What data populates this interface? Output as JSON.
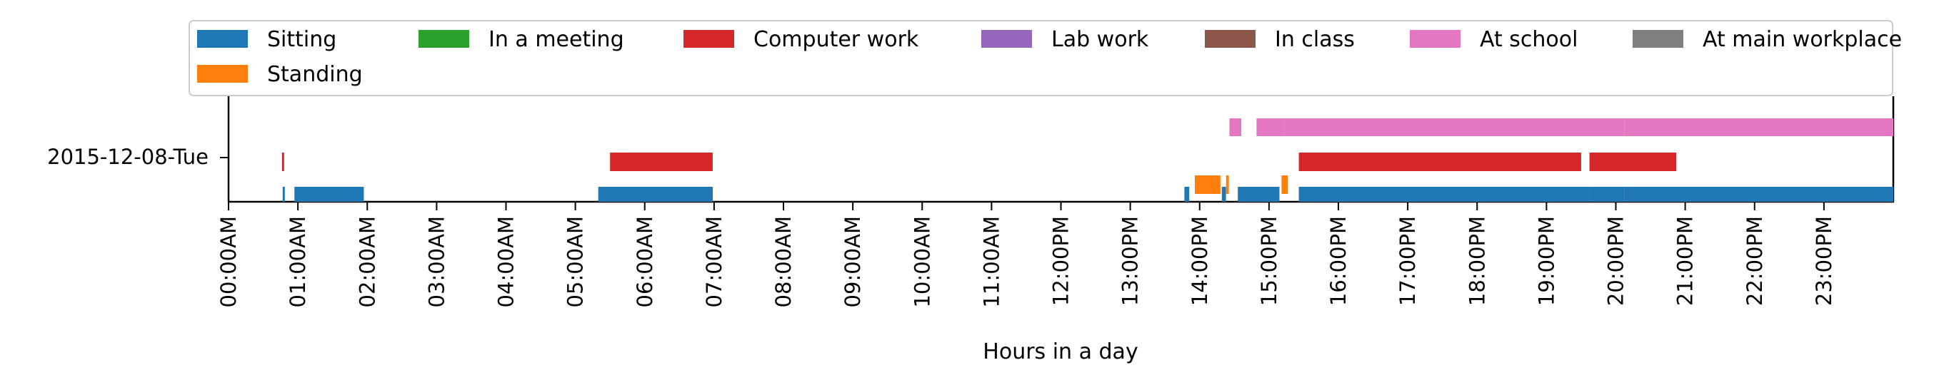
{
  "chart_data": {
    "type": "timeline",
    "xlabel": "Hours in a day",
    "xlim": [
      0,
      24
    ],
    "xtick_labels": [
      "00:00AM",
      "01:00AM",
      "02:00AM",
      "03:00AM",
      "04:00AM",
      "05:00AM",
      "06:00AM",
      "07:00AM",
      "08:00AM",
      "09:00AM",
      "10:00AM",
      "11:00AM",
      "12:00PM",
      "13:00PM",
      "14:00PM",
      "15:00PM",
      "16:00PM",
      "17:00PM",
      "18:00PM",
      "19:00PM",
      "20:00PM",
      "21:00PM",
      "22:00PM",
      "23:00PM"
    ],
    "y_category": "2015-12-08-Tue",
    "grid": false,
    "legend_position": "top",
    "legend": [
      {
        "label": "Sitting",
        "color": "#1f77b4"
      },
      {
        "label": "In a meeting",
        "color": "#2ca02c"
      },
      {
        "label": "Computer work",
        "color": "#d62728"
      },
      {
        "label": "Lab work",
        "color": "#9467bd"
      },
      {
        "label": "In class",
        "color": "#8c564b"
      },
      {
        "label": "At school",
        "color": "#e377c2"
      },
      {
        "label": "At main workplace",
        "color": "#7f7f7f"
      },
      {
        "label": "Standing",
        "color": "#ff7f0e"
      }
    ],
    "series": [
      {
        "name": "Sitting",
        "color": "#1f77b4",
        "track": "bottom",
        "intervals": [
          [
            0.78,
            0.8
          ],
          [
            0.95,
            1.95
          ],
          [
            5.33,
            6.98
          ],
          [
            13.78,
            13.85
          ],
          [
            14.32,
            14.38
          ],
          [
            14.55,
            15.15
          ],
          [
            15.43,
            19.62
          ],
          [
            19.62,
            20.12
          ],
          [
            20.12,
            24.0
          ]
        ]
      },
      {
        "name": "Standing",
        "color": "#ff7f0e",
        "track": "middle-low",
        "intervals": [
          [
            13.93,
            14.3
          ],
          [
            14.38,
            14.42
          ],
          [
            15.18,
            15.27
          ]
        ]
      },
      {
        "name": "Computer work",
        "color": "#d62728",
        "track": "middle",
        "intervals": [
          [
            0.77,
            0.8
          ],
          [
            5.5,
            6.98
          ],
          [
            15.43,
            19.5
          ],
          [
            19.62,
            20.87
          ]
        ]
      },
      {
        "name": "At school",
        "color": "#e377c2",
        "track": "top",
        "intervals": [
          [
            14.43,
            14.6
          ],
          [
            14.82,
            15.22
          ],
          [
            15.22,
            20.12
          ],
          [
            20.12,
            24.0
          ]
        ]
      }
    ]
  }
}
